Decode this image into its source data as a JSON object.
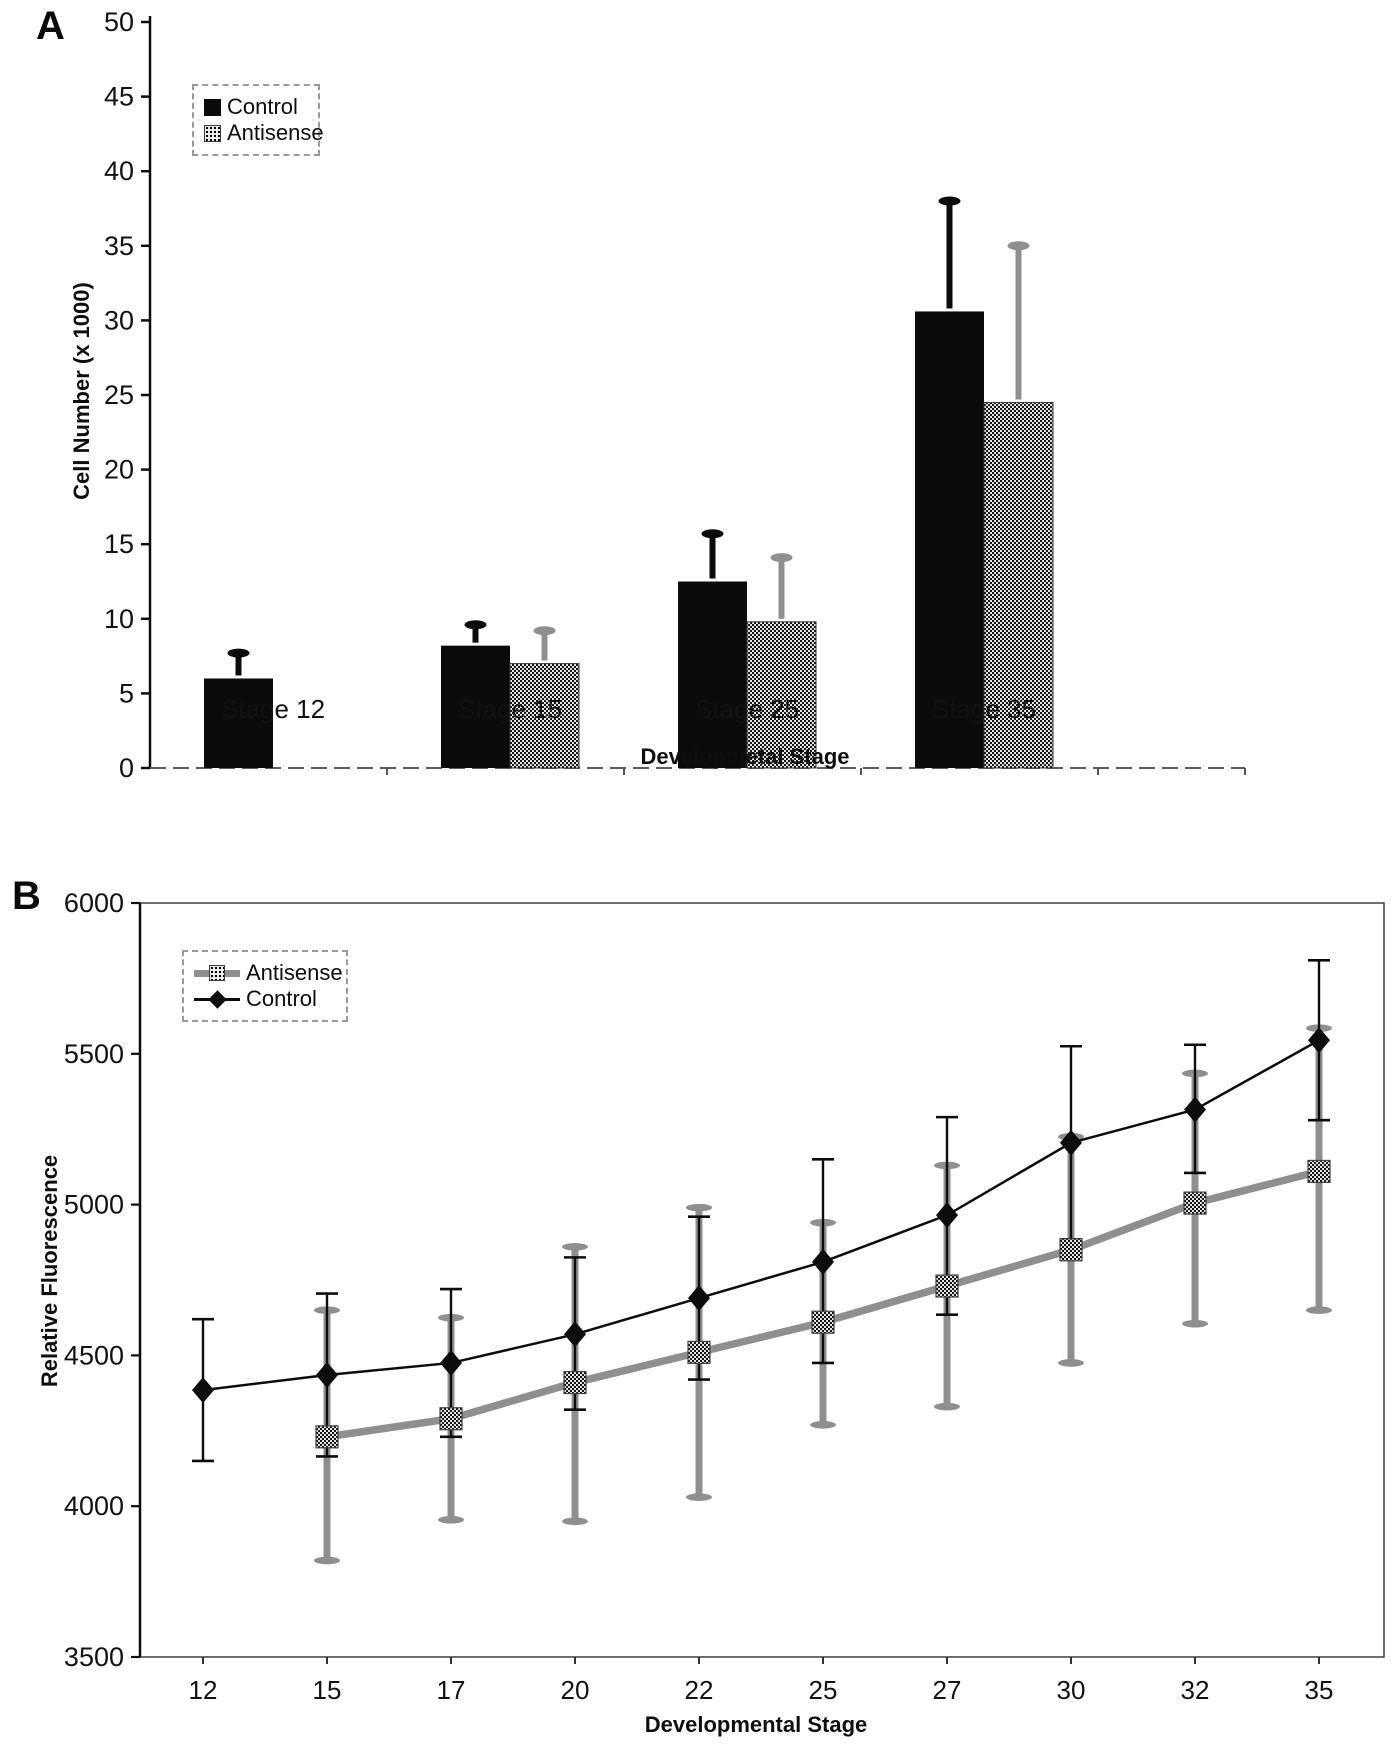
{
  "figure": {
    "background": "#ffffff",
    "ink_color": "#0d0d0d",
    "gray_color": "#8f8f8f"
  },
  "chart_data": [
    {
      "panel": "A",
      "type": "bar",
      "title": "",
      "xlabel": "Developmetal Stage",
      "ylabel": "Cell Number (x 1000)",
      "ylim": [
        0,
        50
      ],
      "ytick_step": 5,
      "grid": false,
      "legend_position": "upper-left",
      "categories": [
        "Stage 12",
        "Stage 15",
        "Stage 25",
        "Stage 35"
      ],
      "series": [
        {
          "name": "Control",
          "style": "solid-black",
          "values": [
            6.0,
            8.2,
            12.5,
            30.6
          ],
          "err_high": [
            7.7,
            9.6,
            15.7,
            38.0
          ]
        },
        {
          "name": "Antisense",
          "style": "halftone-gray",
          "values": [
            null,
            7.0,
            9.8,
            24.5
          ],
          "err_high": [
            null,
            9.2,
            14.1,
            35.0
          ]
        }
      ]
    },
    {
      "panel": "B",
      "type": "line",
      "title": "",
      "xlabel": "Developmental Stage",
      "ylabel": "Relative Fluorescence",
      "ylim": [
        3500,
        6000
      ],
      "ytick_step": 500,
      "grid": false,
      "legend_position": "upper-left",
      "x_ticks": [
        12,
        15,
        17,
        20,
        22,
        25,
        27,
        30,
        32,
        35
      ],
      "series": [
        {
          "name": "Antisense",
          "marker": "square",
          "style": "thick-gray",
          "x": [
            15,
            17,
            20,
            22,
            25,
            27,
            30,
            32,
            35
          ],
          "y": [
            4230,
            4290,
            4410,
            4510,
            4610,
            4730,
            4850,
            5005,
            5110
          ],
          "err_low": [
            3820,
            3955,
            3950,
            4030,
            4270,
            4330,
            4475,
            4605,
            4650
          ],
          "err_high": [
            4650,
            4625,
            4860,
            4990,
            4940,
            5130,
            5225,
            5435,
            5585
          ]
        },
        {
          "name": "Control",
          "marker": "diamond",
          "style": "thin-black",
          "x": [
            12,
            15,
            17,
            20,
            22,
            25,
            27,
            30,
            32,
            35
          ],
          "y": [
            4385,
            4435,
            4475,
            4570,
            4690,
            4810,
            4965,
            5205,
            5315,
            5545
          ],
          "err_low": [
            4150,
            4165,
            4230,
            4320,
            4420,
            4475,
            4635,
            4885,
            5105,
            5280
          ],
          "err_high": [
            4620,
            4705,
            4720,
            4825,
            4960,
            5150,
            5290,
            5525,
            5530,
            5810
          ]
        }
      ]
    }
  ]
}
